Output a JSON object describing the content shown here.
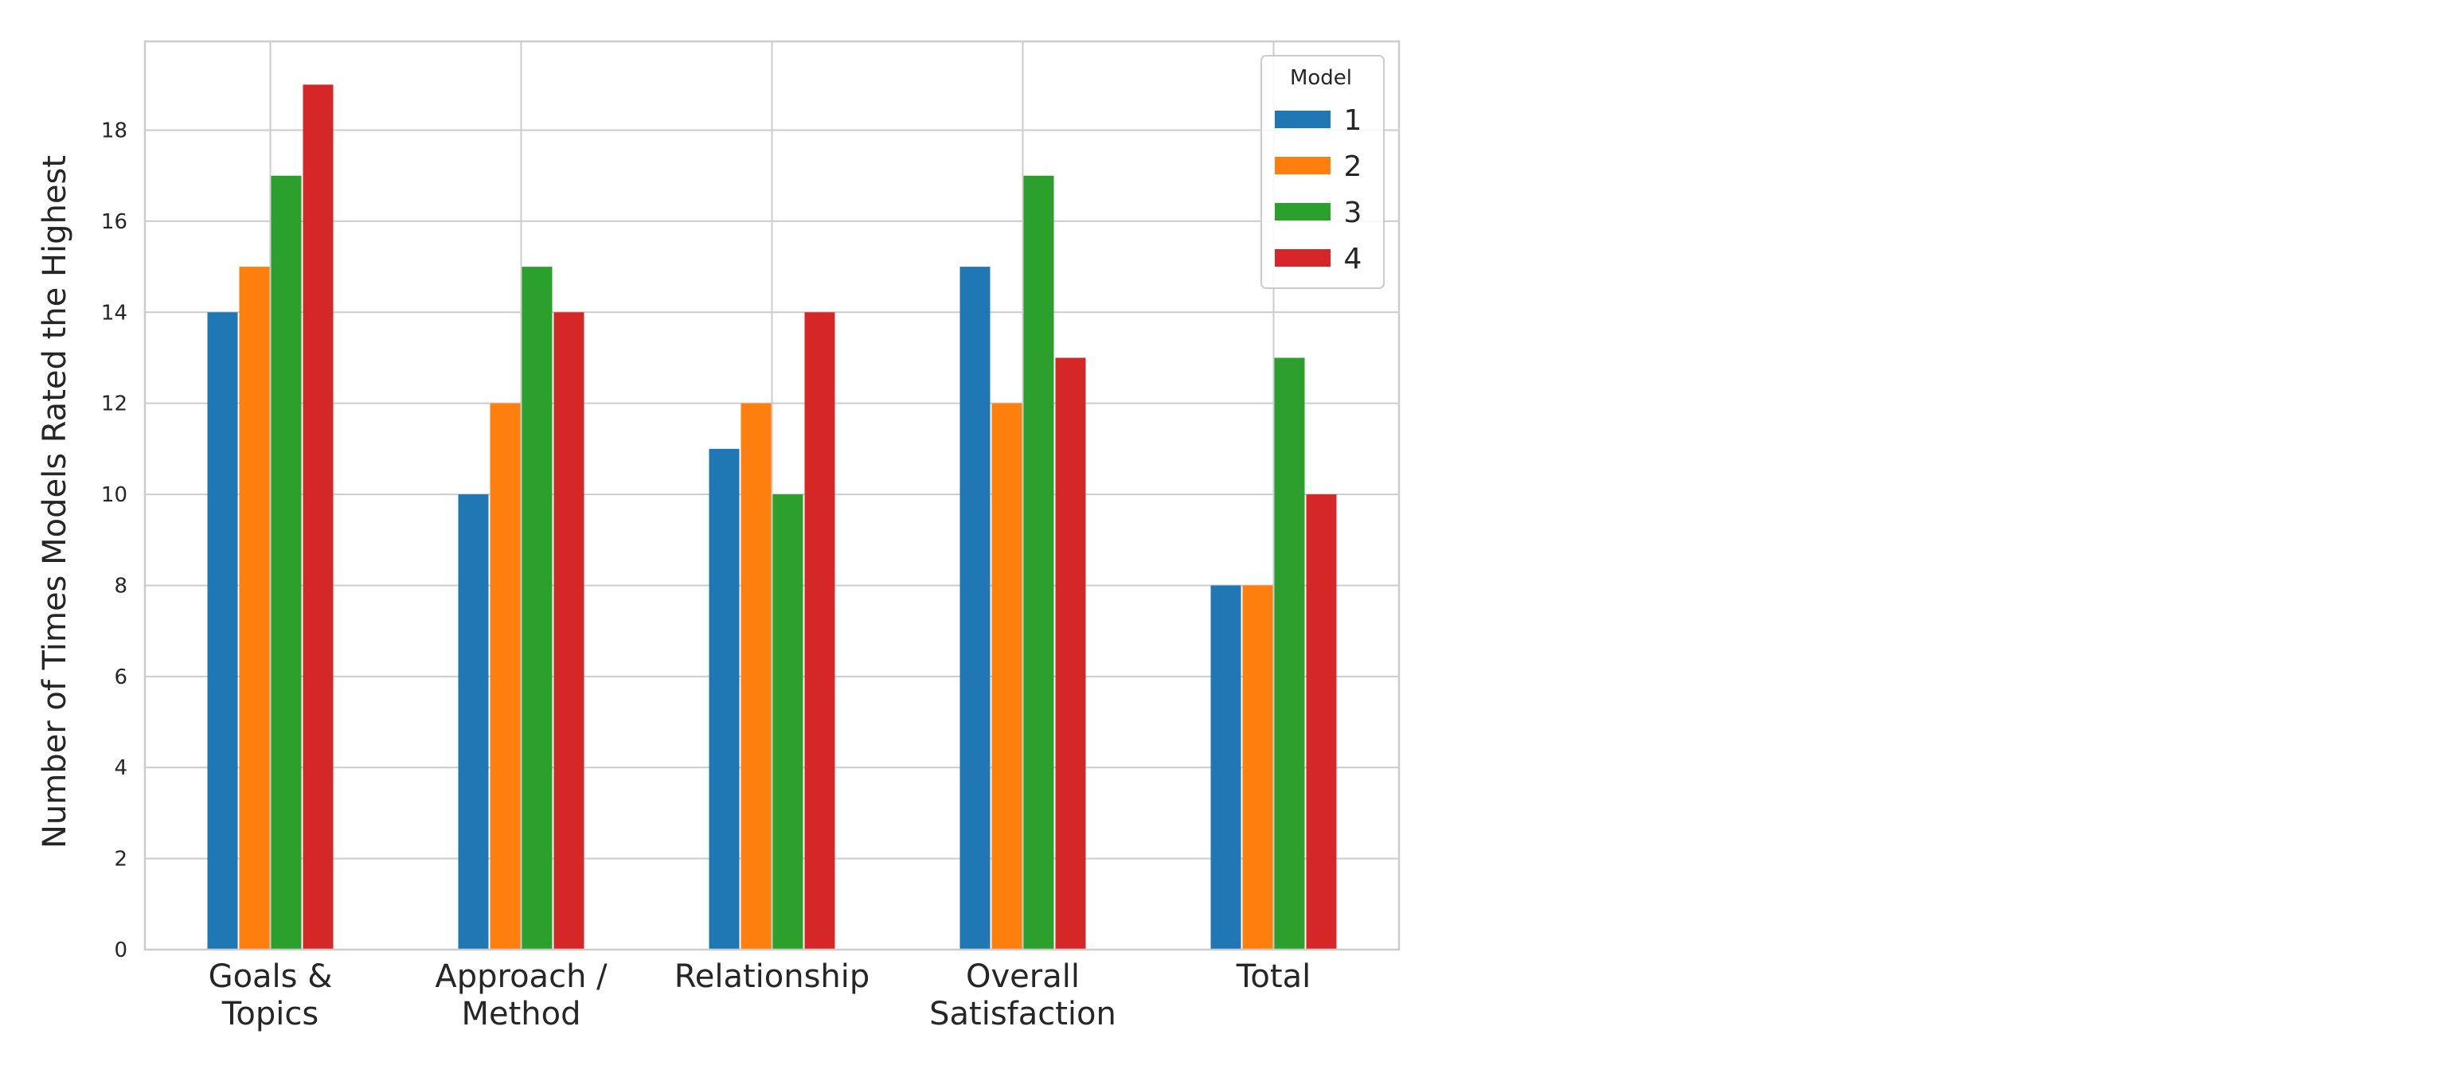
{
  "chart_data": {
    "type": "bar",
    "categories": [
      [
        "Goals &",
        "Topics"
      ],
      [
        "Approach /",
        "Method"
      ],
      [
        "Relationship"
      ],
      [
        "Overall",
        "Satisfaction"
      ],
      [
        "Total"
      ]
    ],
    "series": [
      {
        "name": "1",
        "color": "#1f77b4",
        "values": [
          14,
          10,
          11,
          15,
          8
        ]
      },
      {
        "name": "2",
        "color": "#ff7f0e",
        "values": [
          15,
          12,
          12,
          12,
          8
        ]
      },
      {
        "name": "3",
        "color": "#2ca02c",
        "values": [
          17,
          15,
          10,
          17,
          13
        ]
      },
      {
        "name": "4",
        "color": "#d62728",
        "values": [
          19,
          14,
          14,
          13,
          10
        ]
      }
    ],
    "xlabel": "",
    "ylabel": "Number of Times Models Rated the Highest",
    "ylim": [
      0,
      19.95
    ],
    "yticks": [
      0,
      2,
      4,
      6,
      8,
      10,
      12,
      14,
      16,
      18
    ],
    "grid": true,
    "legend": {
      "title": "Model",
      "placement": "top-right"
    }
  }
}
